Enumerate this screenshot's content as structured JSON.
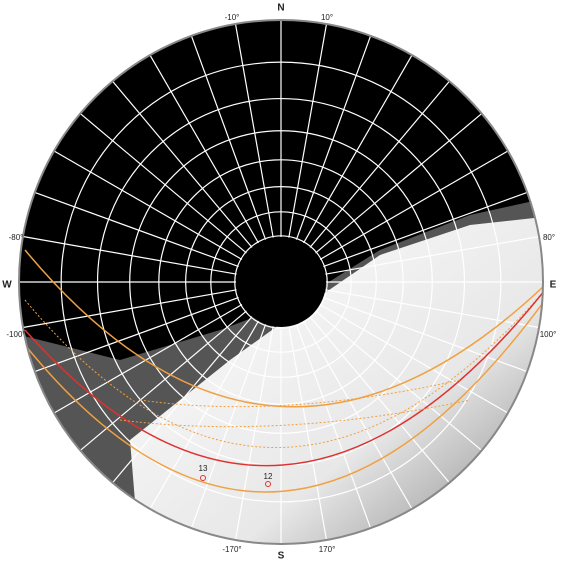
{
  "compass": {
    "north": "N",
    "south": "S",
    "west": "W",
    "east": "E"
  },
  "azimuth_labels": {
    "top_left": "-10°",
    "top_right": "10°",
    "bottom_left": "-170°",
    "bottom_right": "170°",
    "left_upper": "-80°",
    "right_upper": "80°",
    "left_lower": "-100°",
    "right_lower": "100°"
  },
  "hour_labels": {
    "first": "13",
    "second": "12"
  }
}
